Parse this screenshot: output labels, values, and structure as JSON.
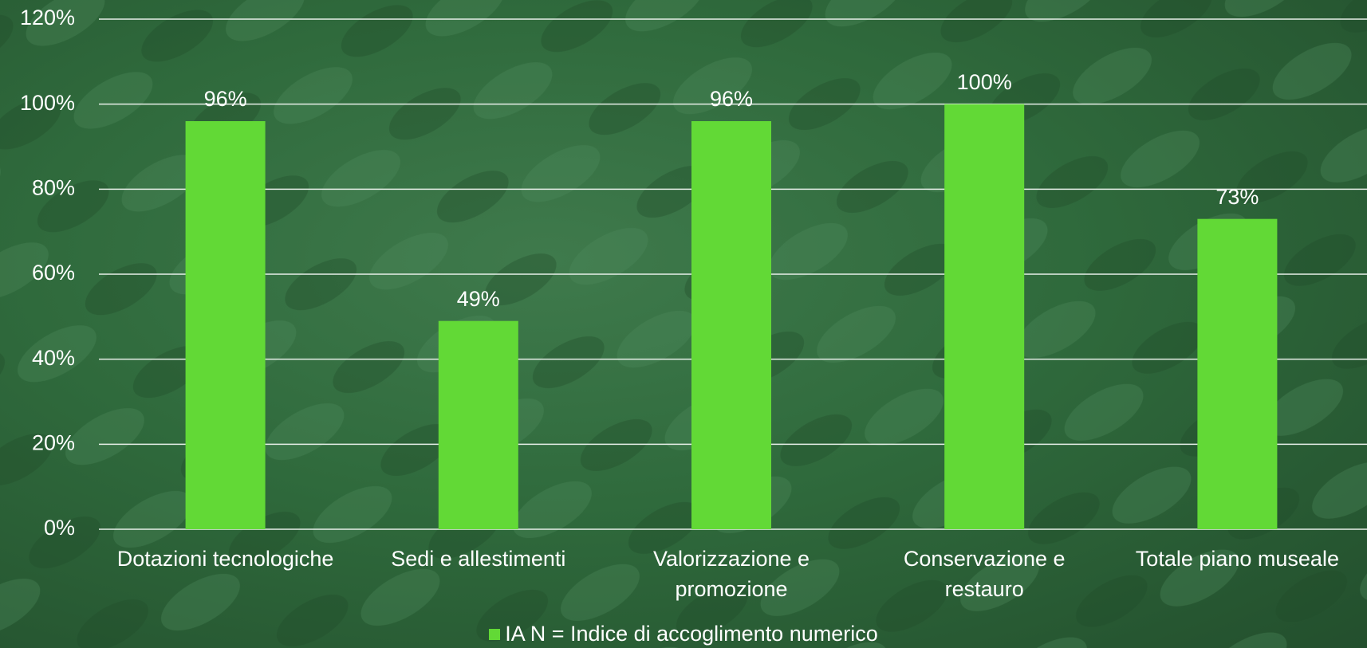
{
  "chart_data": {
    "type": "bar",
    "categories": [
      "Dotazioni tecnologiche",
      "Sedi e allestimenti",
      "Valorizzazione e promozione",
      "Conservazione e restauro",
      "Totale piano museale"
    ],
    "series": [
      {
        "name": "IA N = Indice di accoglimento numerico",
        "color": "#62d936",
        "values": [
          96,
          49,
          96,
          100,
          73
        ],
        "value_labels": [
          "96%",
          "49%",
          "96%",
          "100%",
          "73%"
        ]
      }
    ],
    "ylim": [
      0,
      120
    ],
    "yticks": [
      {
        "value": 0,
        "label": "0%"
      },
      {
        "value": 20,
        "label": "20%"
      },
      {
        "value": 40,
        "label": "40%"
      },
      {
        "value": 60,
        "label": "60%"
      },
      {
        "value": 80,
        "label": "80%"
      },
      {
        "value": 100,
        "label": "100%"
      },
      {
        "value": 120,
        "label": "120%"
      }
    ],
    "grid": true,
    "legend": "bottom"
  }
}
